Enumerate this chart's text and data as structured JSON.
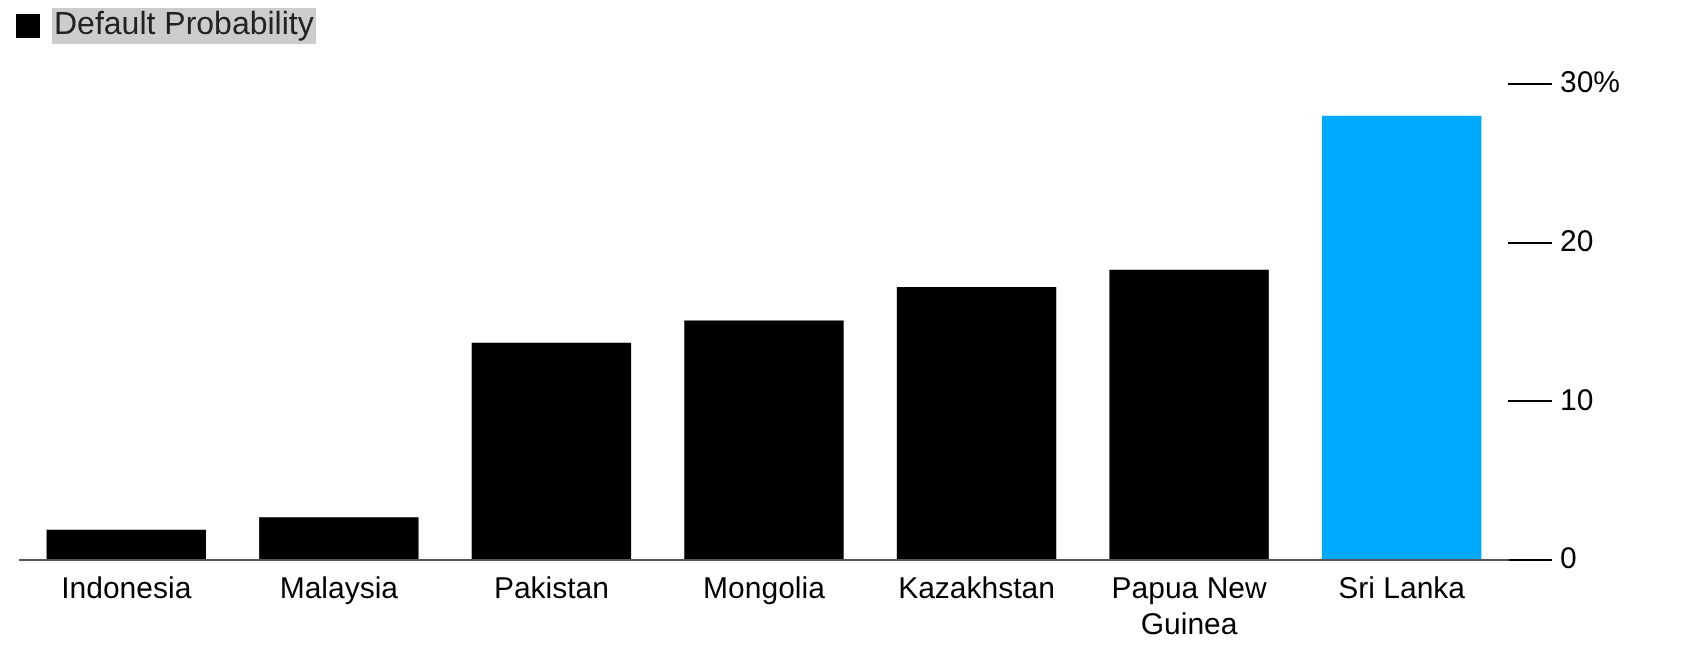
{
  "chart_data": {
    "type": "bar",
    "categories": [
      "Indonesia",
      "Malaysia",
      "Pakistan",
      "Mongolia",
      "Kazakhstan",
      "Papua New Guinea",
      "Sri Lanka"
    ],
    "series": [
      {
        "name": "Default Probability",
        "color": "#000000",
        "colors": [
          "#000000",
          "#000000",
          "#000000",
          "#000000",
          "#000000",
          "#000000",
          "#00aaff"
        ],
        "values": [
          1.9,
          2.7,
          13.7,
          15.1,
          17.2,
          18.3,
          28.0
        ]
      }
    ],
    "ylim": [
      0,
      30
    ],
    "yticks": [
      0,
      10,
      20,
      {
        "value": 30,
        "label": "30%"
      }
    ],
    "grid": false,
    "legend": "top left"
  }
}
